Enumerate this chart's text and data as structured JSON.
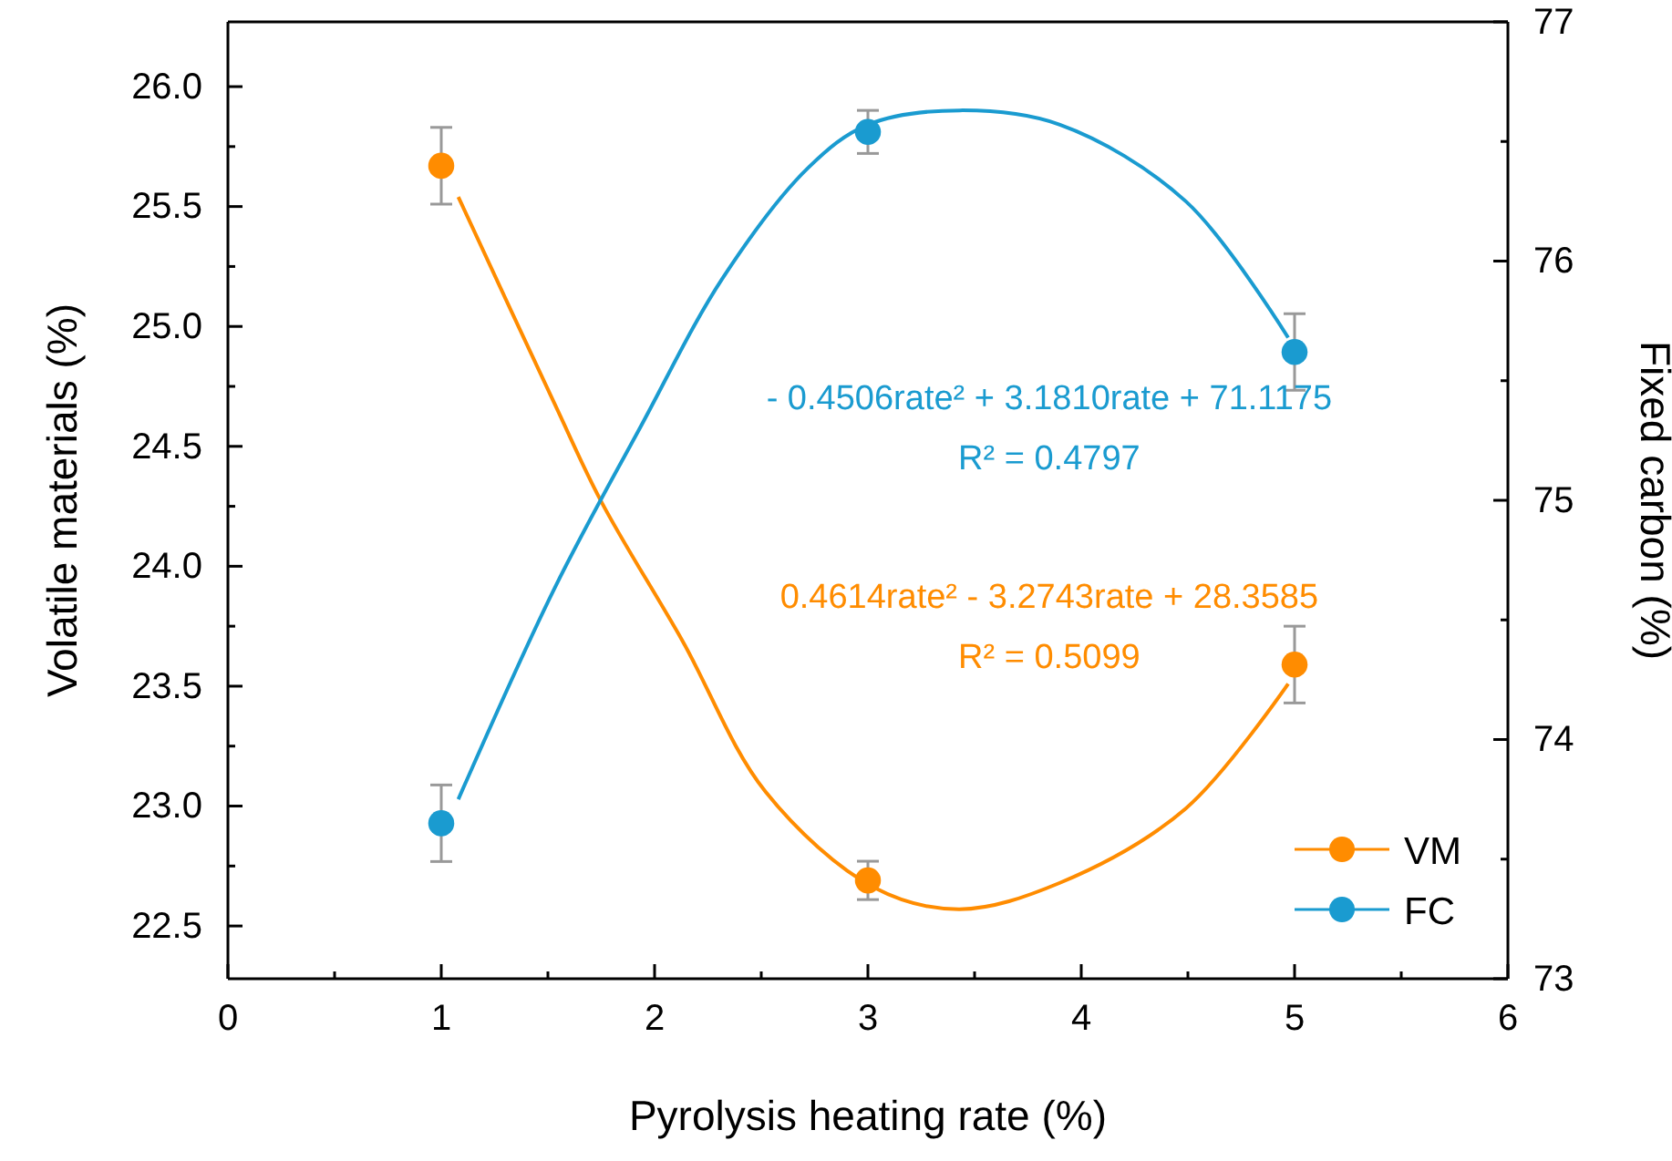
{
  "chart_data": {
    "type": "scatter",
    "xlabel": "Pyrolysis heating rate (%)",
    "ylabel": "Volatile materials (%)",
    "y2label": "Fixed carbon (%)",
    "xlim": [
      0,
      6
    ],
    "xticks": [
      0,
      1,
      2,
      3,
      4,
      5,
      6
    ],
    "ylim": [
      22.28,
      26.27
    ],
    "yticks": [
      22.5,
      {
        "value": 23,
        "label": "23.0"
      },
      23.5,
      {
        "value": 24,
        "label": "24.0"
      },
      24.5,
      {
        "value": 25,
        "label": "25.0"
      },
      25.5,
      {
        "value": 26,
        "label": "26.0"
      }
    ],
    "y2lim": [
      73,
      77
    ],
    "y2ticks": [
      73,
      74,
      75,
      76,
      77
    ],
    "legend": "bottom right",
    "marker": "circle",
    "grid": false,
    "series": [
      {
        "name": "VM",
        "color": "#ff8c00",
        "x": [
          1,
          3,
          5
        ],
        "values": [
          25.67,
          22.69,
          23.59
        ],
        "errors": [
          0.16,
          0.08,
          0.16
        ]
      },
      {
        "name": "FC",
        "axis": "y2",
        "color": "#1a9bd0",
        "x": [
          1,
          3,
          5
        ],
        "values": [
          73.65,
          76.54,
          75.62
        ],
        "errors": [
          0.16,
          0.09,
          0.16
        ]
      },
      {
        "type": "line",
        "marker": "none",
        "color": "#ff8c00",
        "x": [
          1.08,
          1.53,
          1.75,
          2.13,
          2.52,
          3.03,
          3.43,
          3.9,
          4.49,
          4.97
        ],
        "values": [
          25.54,
          24.68,
          24.27,
          23.69,
          23.06,
          22.66,
          22.57,
          22.68,
          22.99,
          23.51
        ]
      },
      {
        "type": "line",
        "marker": "none",
        "axis": "y2",
        "color": "#1a9bd0",
        "x": [
          1.08,
          1.53,
          1.93,
          2.32,
          2.72,
          3.0,
          3.43,
          3.9,
          4.49,
          4.97
        ],
        "values": [
          73.75,
          74.63,
          75.3,
          75.93,
          76.39,
          76.57,
          76.63,
          76.57,
          76.25,
          75.68
        ]
      }
    ],
    "annotations": [
      "- 0.4506rate² + 3.1810rate + 71.1175",
      "R² = 0.4797",
      "0.4614rate² - 3.2743rate + 28.3585",
      "R² = 0.5099"
    ]
  }
}
